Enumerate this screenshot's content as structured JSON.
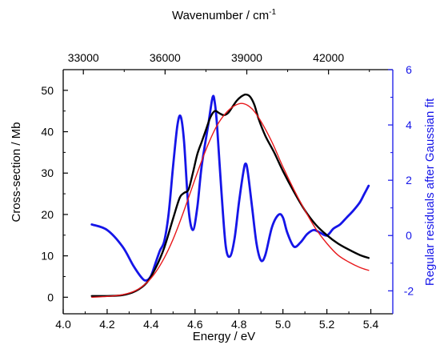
{
  "chart_data": {
    "type": "line",
    "xlabel": "Energy / eV",
    "ylabel": "Cross-section / Mb",
    "y2label": "Regular residuals after Gaussian fit",
    "x2label_main": "Wavenumber / cm",
    "x2label_sup": "-1",
    "xlim": [
      4.0,
      5.5
    ],
    "ylim": [
      -4,
      55
    ],
    "y2lim": [
      -2.83,
      6
    ],
    "x2lim": [
      32260,
      44360
    ],
    "xticks": [
      4.0,
      4.2,
      4.4,
      4.6,
      4.8,
      5.0,
      5.2,
      5.4
    ],
    "xtick_labels": [
      "4.0",
      "4.2",
      "4.4",
      "4.6",
      "4.8",
      "5.0",
      "5.2",
      "5.4"
    ],
    "yticks": [
      0,
      10,
      20,
      30,
      40,
      50
    ],
    "ytick_labels": [
      "0",
      "10",
      "20",
      "30",
      "40",
      "50"
    ],
    "y2ticks": [
      -2,
      0,
      2,
      4,
      6
    ],
    "y2tick_labels": [
      "-2",
      "0",
      "2",
      "4",
      "6"
    ],
    "x2ticks": [
      33000,
      36000,
      39000,
      42000
    ],
    "x2tick_labels": [
      "33000",
      "36000",
      "39000",
      "42000"
    ],
    "colors": {
      "black": "#000000",
      "red": "#e8191c",
      "blue": "#1515e8",
      "axis": "#000000"
    },
    "series": [
      {
        "color": "#000000",
        "axis": "left",
        "x": [
          4.13,
          4.2,
          4.27,
          4.33,
          4.38,
          4.42,
          4.46,
          4.5,
          4.53,
          4.55,
          4.57,
          4.59,
          4.61,
          4.63,
          4.65,
          4.67,
          4.69,
          4.71,
          4.73,
          4.75,
          4.77,
          4.79,
          4.81,
          4.83,
          4.85,
          4.87,
          4.89,
          4.92,
          4.96,
          5.0,
          5.05,
          5.1,
          5.15,
          5.2,
          5.25,
          5.3,
          5.35,
          5.39
        ],
        "values": [
          0.3,
          0.3,
          0.5,
          1.5,
          3.5,
          7,
          12,
          19,
          24,
          25.2,
          26,
          30,
          34.5,
          37.5,
          40.5,
          43.5,
          45,
          44.5,
          44,
          44.5,
          46,
          47.5,
          48.5,
          49,
          48.5,
          46.5,
          43,
          39,
          35,
          30.5,
          25.5,
          21,
          17.5,
          15,
          13,
          11.5,
          10.2,
          9.5
        ]
      },
      {
        "color": "#e8191c",
        "axis": "left",
        "x": [
          4.13,
          4.2,
          4.27,
          4.33,
          4.38,
          4.42,
          4.46,
          4.5,
          4.54,
          4.58,
          4.62,
          4.66,
          4.7,
          4.74,
          4.78,
          4.82,
          4.86,
          4.9,
          4.95,
          5.0,
          5.05,
          5.1,
          5.15,
          5.2,
          5.25,
          5.3,
          5.35,
          5.39
        ],
        "values": [
          0.0,
          0.2,
          0.6,
          1.6,
          3.5,
          6,
          9.5,
          14,
          19.5,
          25.5,
          31.5,
          37,
          41.5,
          44.5,
          46.3,
          46.8,
          45.5,
          42.5,
          37.5,
          31.5,
          26,
          21,
          16.5,
          13,
          10.2,
          8.5,
          7.2,
          6.5
        ]
      },
      {
        "color": "#1515e8",
        "axis": "right",
        "x": [
          4.13,
          4.2,
          4.27,
          4.32,
          4.36,
          4.38,
          4.4,
          4.42,
          4.44,
          4.46,
          4.48,
          4.5,
          4.52,
          4.535,
          4.55,
          4.57,
          4.59,
          4.61,
          4.63,
          4.66,
          4.68,
          4.69,
          4.7,
          4.72,
          4.74,
          4.76,
          4.78,
          4.8,
          4.82,
          4.83,
          4.84,
          4.86,
          4.88,
          4.9,
          4.92,
          4.95,
          4.98,
          5.0,
          5.02,
          5.05,
          5.08,
          5.11,
          5.14,
          5.17,
          5.2,
          5.23,
          5.26,
          5.29,
          5.32,
          5.35,
          5.37,
          5.39
        ],
        "values": [
          0.4,
          0.2,
          -0.4,
          -1.1,
          -1.55,
          -1.62,
          -1.45,
          -1.0,
          -0.55,
          -0.2,
          0.8,
          2.5,
          4.0,
          4.3,
          3.4,
          1.0,
          0.2,
          1.0,
          2.5,
          4.0,
          5.0,
          4.8,
          4.0,
          1.6,
          -0.4,
          -0.75,
          -0.1,
          1.2,
          2.3,
          2.6,
          2.3,
          1.0,
          -0.3,
          -0.9,
          -0.7,
          0.3,
          0.75,
          0.65,
          0.1,
          -0.4,
          -0.25,
          0.05,
          0.2,
          0.1,
          0.0,
          0.25,
          0.4,
          0.65,
          0.9,
          1.2,
          1.5,
          1.8
        ]
      }
    ]
  }
}
